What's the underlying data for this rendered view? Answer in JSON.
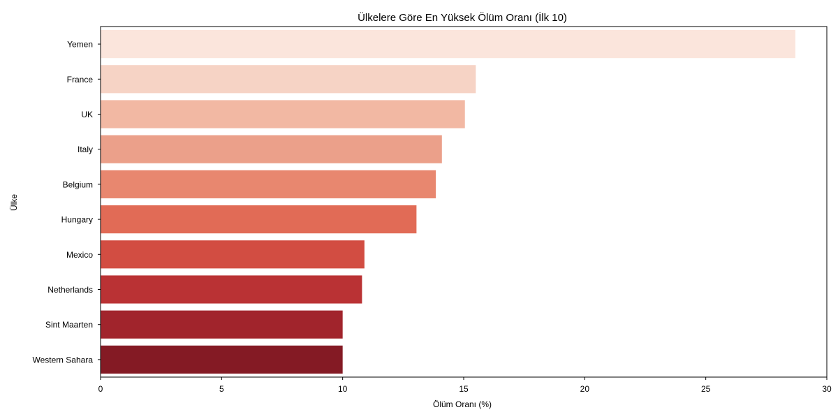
{
  "chart_data": {
    "type": "bar",
    "orientation": "horizontal",
    "title": "Ülkelere Göre En Yüksek Ölüm Oranı (İlk 10)",
    "xlabel": "Ölüm Oranı (%)",
    "ylabel": "Ülke",
    "xlim": [
      0,
      30
    ],
    "xticks": [
      0,
      5,
      10,
      15,
      20,
      25,
      30
    ],
    "grid": false,
    "legend": "none",
    "categories": [
      "Yemen",
      "France",
      "UK",
      "Italy",
      "Belgium",
      "Hungary",
      "Mexico",
      "Netherlands",
      "Sint Maarten",
      "Western Sahara"
    ],
    "values": [
      28.7,
      15.5,
      15.05,
      14.1,
      13.85,
      13.05,
      10.9,
      10.8,
      10.0,
      10.0
    ],
    "colors": [
      "#fbe5dc",
      "#f6d3c5",
      "#f2b8a3",
      "#eba08a",
      "#e8876f",
      "#e16b56",
      "#d24d42",
      "#ba3234",
      "#a1242c",
      "#841a24"
    ]
  }
}
